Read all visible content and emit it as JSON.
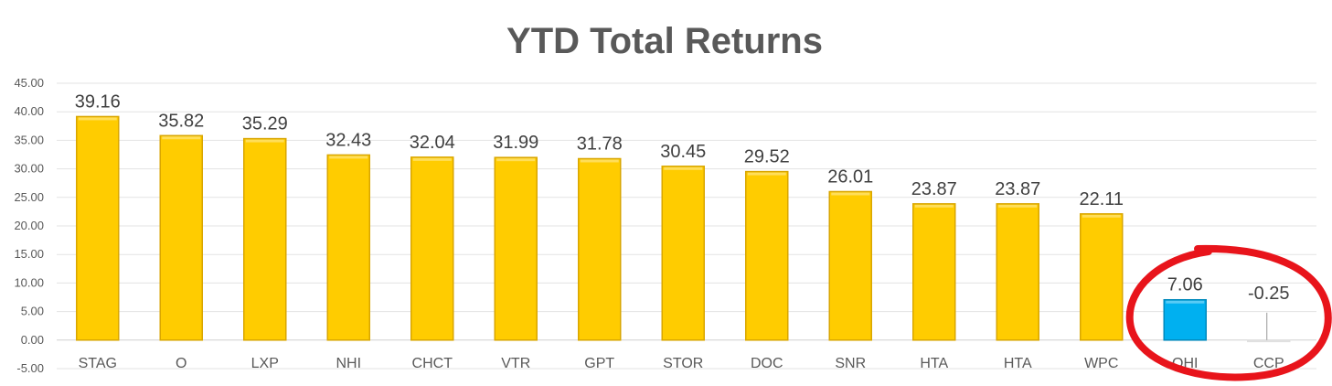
{
  "chart_data": {
    "type": "bar",
    "title": "YTD Total Returns",
    "xlabel": "",
    "ylabel": "",
    "ylim": [
      -5,
      45
    ],
    "ytick_step": 5,
    "ytick_labels": [
      "-5.00",
      "0.00",
      "5.00",
      "10.00",
      "15.00",
      "20.00",
      "25.00",
      "30.00",
      "35.00",
      "40.00",
      "45.00"
    ],
    "grid": true,
    "legend": "none",
    "categories": [
      "STAG",
      "O",
      "LXP",
      "NHI",
      "CHCT",
      "VTR",
      "GPT",
      "STOR",
      "DOC",
      "SNR",
      "HTA",
      "HTA",
      "WPC",
      "OHI",
      "CCP"
    ],
    "values": [
      39.16,
      35.82,
      35.29,
      32.43,
      32.04,
      31.99,
      31.78,
      30.45,
      29.52,
      26.01,
      23.87,
      23.87,
      22.11,
      7.06,
      -0.25
    ],
    "data_labels": [
      "39.16",
      "35.82",
      "35.29",
      "32.43",
      "32.04",
      "31.99",
      "31.78",
      "30.45",
      "29.52",
      "26.01",
      "23.87",
      "23.87",
      "22.11",
      "7.06",
      "-0.25"
    ],
    "bar_colors": [
      "#FFCC00",
      "#FFCC00",
      "#FFCC00",
      "#FFCC00",
      "#FFCC00",
      "#FFCC00",
      "#FFCC00",
      "#FFCC00",
      "#FFCC00",
      "#FFCC00",
      "#FFCC00",
      "#FFCC00",
      "#FFCC00",
      "#00B0F0",
      "#F2F2F2"
    ],
    "annotation": {
      "type": "hand-drawn-circle",
      "color": "#E8141B",
      "highlights": [
        "OHI",
        "CCP"
      ]
    }
  }
}
